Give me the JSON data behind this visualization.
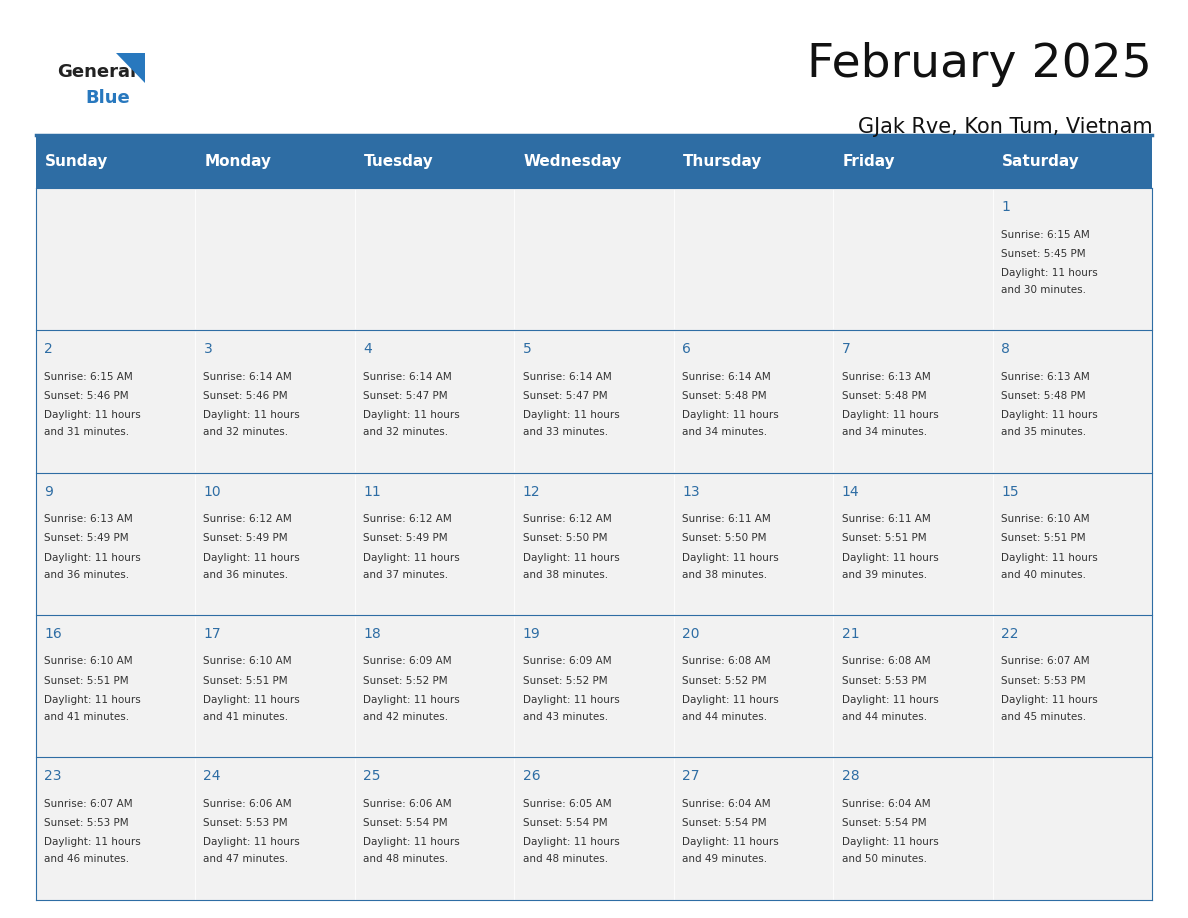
{
  "title": "February 2025",
  "subtitle": "GJak Rve, Kon Tum, Vietnam",
  "header_color": "#2E6DA4",
  "header_text_color": "#FFFFFF",
  "day_headers": [
    "Sunday",
    "Monday",
    "Tuesday",
    "Wednesday",
    "Thursday",
    "Friday",
    "Saturday"
  ],
  "background_color": "#FFFFFF",
  "cell_bg_color": "#F2F2F2",
  "cell_border_color": "#2E6DA4",
  "day_number_color": "#2E6DA4",
  "cell_text_color": "#333333",
  "logo_general_color": "#222222",
  "logo_blue_color": "#2878BE",
  "calendar_data": [
    [
      null,
      null,
      null,
      null,
      null,
      null,
      {
        "day": 1,
        "sunrise": "6:15 AM",
        "sunset": "5:45 PM",
        "daylight": "11 hours and 30 minutes."
      }
    ],
    [
      {
        "day": 2,
        "sunrise": "6:15 AM",
        "sunset": "5:46 PM",
        "daylight": "11 hours and 31 minutes."
      },
      {
        "day": 3,
        "sunrise": "6:14 AM",
        "sunset": "5:46 PM",
        "daylight": "11 hours and 32 minutes."
      },
      {
        "day": 4,
        "sunrise": "6:14 AM",
        "sunset": "5:47 PM",
        "daylight": "11 hours and 32 minutes."
      },
      {
        "day": 5,
        "sunrise": "6:14 AM",
        "sunset": "5:47 PM",
        "daylight": "11 hours and 33 minutes."
      },
      {
        "day": 6,
        "sunrise": "6:14 AM",
        "sunset": "5:48 PM",
        "daylight": "11 hours and 34 minutes."
      },
      {
        "day": 7,
        "sunrise": "6:13 AM",
        "sunset": "5:48 PM",
        "daylight": "11 hours and 34 minutes."
      },
      {
        "day": 8,
        "sunrise": "6:13 AM",
        "sunset": "5:48 PM",
        "daylight": "11 hours and 35 minutes."
      }
    ],
    [
      {
        "day": 9,
        "sunrise": "6:13 AM",
        "sunset": "5:49 PM",
        "daylight": "11 hours and 36 minutes."
      },
      {
        "day": 10,
        "sunrise": "6:12 AM",
        "sunset": "5:49 PM",
        "daylight": "11 hours and 36 minutes."
      },
      {
        "day": 11,
        "sunrise": "6:12 AM",
        "sunset": "5:49 PM",
        "daylight": "11 hours and 37 minutes."
      },
      {
        "day": 12,
        "sunrise": "6:12 AM",
        "sunset": "5:50 PM",
        "daylight": "11 hours and 38 minutes."
      },
      {
        "day": 13,
        "sunrise": "6:11 AM",
        "sunset": "5:50 PM",
        "daylight": "11 hours and 38 minutes."
      },
      {
        "day": 14,
        "sunrise": "6:11 AM",
        "sunset": "5:51 PM",
        "daylight": "11 hours and 39 minutes."
      },
      {
        "day": 15,
        "sunrise": "6:10 AM",
        "sunset": "5:51 PM",
        "daylight": "11 hours and 40 minutes."
      }
    ],
    [
      {
        "day": 16,
        "sunrise": "6:10 AM",
        "sunset": "5:51 PM",
        "daylight": "11 hours and 41 minutes."
      },
      {
        "day": 17,
        "sunrise": "6:10 AM",
        "sunset": "5:51 PM",
        "daylight": "11 hours and 41 minutes."
      },
      {
        "day": 18,
        "sunrise": "6:09 AM",
        "sunset": "5:52 PM",
        "daylight": "11 hours and 42 minutes."
      },
      {
        "day": 19,
        "sunrise": "6:09 AM",
        "sunset": "5:52 PM",
        "daylight": "11 hours and 43 minutes."
      },
      {
        "day": 20,
        "sunrise": "6:08 AM",
        "sunset": "5:52 PM",
        "daylight": "11 hours and 44 minutes."
      },
      {
        "day": 21,
        "sunrise": "6:08 AM",
        "sunset": "5:53 PM",
        "daylight": "11 hours and 44 minutes."
      },
      {
        "day": 22,
        "sunrise": "6:07 AM",
        "sunset": "5:53 PM",
        "daylight": "11 hours and 45 minutes."
      }
    ],
    [
      {
        "day": 23,
        "sunrise": "6:07 AM",
        "sunset": "5:53 PM",
        "daylight": "11 hours and 46 minutes."
      },
      {
        "day": 24,
        "sunrise": "6:06 AM",
        "sunset": "5:53 PM",
        "daylight": "11 hours and 47 minutes."
      },
      {
        "day": 25,
        "sunrise": "6:06 AM",
        "sunset": "5:54 PM",
        "daylight": "11 hours and 48 minutes."
      },
      {
        "day": 26,
        "sunrise": "6:05 AM",
        "sunset": "5:54 PM",
        "daylight": "11 hours and 48 minutes."
      },
      {
        "day": 27,
        "sunrise": "6:04 AM",
        "sunset": "5:54 PM",
        "daylight": "11 hours and 49 minutes."
      },
      {
        "day": 28,
        "sunrise": "6:04 AM",
        "sunset": "5:54 PM",
        "daylight": "11 hours and 50 minutes."
      },
      null
    ]
  ]
}
